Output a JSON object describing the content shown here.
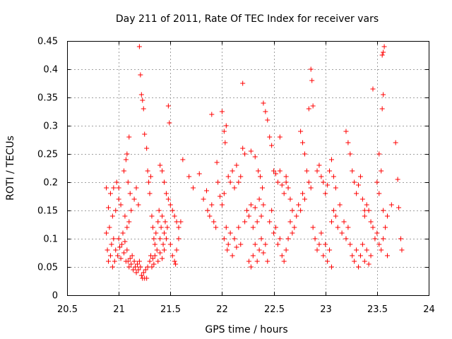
{
  "chart_data": {
    "type": "scatter",
    "title": "Day 211 of 2011, Rate Of TEC Index for receiver vars",
    "xlabel": "GPS time / hours",
    "ylabel": "ROTI / TECUs",
    "xlim": [
      20.5,
      24
    ],
    "ylim": [
      0,
      0.45
    ],
    "xticks": [
      "20.5",
      "21",
      "21.5",
      "22",
      "22.5",
      "23",
      "23.5",
      "24"
    ],
    "yticks": [
      "0",
      "0.05",
      "0.1",
      "0.15",
      "0.2",
      "0.25",
      "0.3",
      "0.35",
      "0.4",
      "0.45"
    ],
    "grid": true,
    "marker": "+",
    "color": "#ff0000",
    "series": [
      {
        "name": "vars",
        "points": [
          [
            20.88,
            0.11
          ],
          [
            20.89,
            0.08
          ],
          [
            20.9,
            0.06
          ],
          [
            20.91,
            0.12
          ],
          [
            20.92,
            0.07
          ],
          [
            20.93,
            0.09
          ],
          [
            20.94,
            0.05
          ],
          [
            20.95,
            0.1
          ],
          [
            20.96,
            0.06
          ],
          [
            20.97,
            0.08
          ],
          [
            20.88,
            0.19
          ],
          [
            20.92,
            0.18
          ],
          [
            20.95,
            0.19
          ],
          [
            20.98,
            0.2
          ],
          [
            21.0,
            0.19
          ],
          [
            20.9,
            0.155
          ],
          [
            20.94,
            0.14
          ],
          [
            20.97,
            0.15
          ],
          [
            21.0,
            0.17
          ],
          [
            21.02,
            0.16
          ],
          [
            20.99,
            0.07
          ],
          [
            21.0,
            0.1
          ],
          [
            21.01,
            0.085
          ],
          [
            21.02,
            0.065
          ],
          [
            21.03,
            0.09
          ],
          [
            21.04,
            0.11
          ],
          [
            21.05,
            0.075
          ],
          [
            21.06,
            0.095
          ],
          [
            21.07,
            0.06
          ],
          [
            21.08,
            0.08
          ],
          [
            21.05,
            0.22
          ],
          [
            21.07,
            0.24
          ],
          [
            21.08,
            0.25
          ],
          [
            21.1,
            0.28
          ],
          [
            21.09,
            0.2
          ],
          [
            21.11,
            0.18
          ],
          [
            21.06,
            0.14
          ],
          [
            21.08,
            0.12
          ],
          [
            21.1,
            0.13
          ],
          [
            21.12,
            0.15
          ],
          [
            21.09,
            0.06
          ],
          [
            21.1,
            0.05
          ],
          [
            21.11,
            0.065
          ],
          [
            21.12,
            0.055
          ],
          [
            21.13,
            0.07
          ],
          [
            21.14,
            0.045
          ],
          [
            21.15,
            0.06
          ],
          [
            21.16,
            0.05
          ],
          [
            21.17,
            0.04
          ],
          [
            21.18,
            0.055
          ],
          [
            21.19,
            0.045
          ],
          [
            21.2,
            0.06
          ],
          [
            21.21,
            0.05
          ],
          [
            21.22,
            0.035
          ],
          [
            21.23,
            0.03
          ],
          [
            21.24,
            0.04
          ],
          [
            21.25,
            0.03
          ],
          [
            21.26,
            0.045
          ],
          [
            21.27,
            0.03
          ],
          [
            21.28,
            0.05
          ],
          [
            21.2,
            0.44
          ],
          [
            21.21,
            0.39
          ],
          [
            21.22,
            0.355
          ],
          [
            21.23,
            0.345
          ],
          [
            21.24,
            0.33
          ],
          [
            21.25,
            0.285
          ],
          [
            21.27,
            0.26
          ],
          [
            21.15,
            0.17
          ],
          [
            21.17,
            0.19
          ],
          [
            21.19,
            0.16
          ],
          [
            21.28,
            0.22
          ],
          [
            21.29,
            0.2
          ],
          [
            21.3,
            0.18
          ],
          [
            21.31,
            0.21
          ],
          [
            21.32,
            0.14
          ],
          [
            21.33,
            0.12
          ],
          [
            21.34,
            0.1
          ],
          [
            21.35,
            0.09
          ],
          [
            21.36,
            0.11
          ],
          [
            21.37,
            0.08
          ],
          [
            21.3,
            0.06
          ],
          [
            21.31,
            0.07
          ],
          [
            21.32,
            0.05
          ],
          [
            21.33,
            0.065
          ],
          [
            21.34,
            0.055
          ],
          [
            21.35,
            0.07
          ],
          [
            21.38,
            0.06
          ],
          [
            21.4,
            0.075
          ],
          [
            21.42,
            0.065
          ],
          [
            21.44,
            0.08
          ],
          [
            21.38,
            0.13
          ],
          [
            21.39,
            0.15
          ],
          [
            21.4,
            0.1
          ],
          [
            21.41,
            0.12
          ],
          [
            21.42,
            0.14
          ],
          [
            21.43,
            0.09
          ],
          [
            21.44,
            0.11
          ],
          [
            21.45,
            0.13
          ],
          [
            21.46,
            0.1
          ],
          [
            21.47,
            0.12
          ],
          [
            21.4,
            0.23
          ],
          [
            21.42,
            0.22
          ],
          [
            21.44,
            0.2
          ],
          [
            21.46,
            0.18
          ],
          [
            21.48,
            0.17
          ],
          [
            21.5,
            0.16
          ],
          [
            21.52,
            0.15
          ],
          [
            21.54,
            0.14
          ],
          [
            21.56,
            0.13
          ],
          [
            21.58,
            0.12
          ],
          [
            21.48,
            0.335
          ],
          [
            21.49,
            0.305
          ],
          [
            21.5,
            0.09
          ],
          [
            21.52,
            0.07
          ],
          [
            21.54,
            0.06
          ],
          [
            21.56,
            0.08
          ],
          [
            21.58,
            0.1
          ],
          [
            21.6,
            0.13
          ],
          [
            21.62,
            0.24
          ],
          [
            21.55,
            0.055
          ],
          [
            21.68,
            0.21
          ],
          [
            21.72,
            0.19
          ],
          [
            21.78,
            0.215
          ],
          [
            21.82,
            0.17
          ],
          [
            21.86,
            0.15
          ],
          [
            21.88,
            0.14
          ],
          [
            21.85,
            0.185
          ],
          [
            21.9,
            0.16
          ],
          [
            21.92,
            0.13
          ],
          [
            21.94,
            0.12
          ],
          [
            21.9,
            0.32
          ],
          [
            21.95,
            0.235
          ],
          [
            21.96,
            0.2
          ],
          [
            21.98,
            0.175
          ],
          [
            22.0,
            0.16
          ],
          [
            22.02,
            0.18
          ],
          [
            22.0,
            0.325
          ],
          [
            22.02,
            0.29
          ],
          [
            22.04,
            0.3
          ],
          [
            22.03,
            0.27
          ],
          [
            22.02,
            0.1
          ],
          [
            22.04,
            0.12
          ],
          [
            22.05,
            0.08
          ],
          [
            22.06,
            0.09
          ],
          [
            22.08,
            0.11
          ],
          [
            22.1,
            0.07
          ],
          [
            22.12,
            0.1
          ],
          [
            22.14,
            0.085
          ],
          [
            22.16,
            0.12
          ],
          [
            22.18,
            0.09
          ],
          [
            22.06,
            0.21
          ],
          [
            22.08,
            0.2
          ],
          [
            22.1,
            0.22
          ],
          [
            22.12,
            0.19
          ],
          [
            22.14,
            0.23
          ],
          [
            22.16,
            0.2
          ],
          [
            22.18,
            0.21
          ],
          [
            22.2,
            0.26
          ],
          [
            22.2,
            0.375
          ],
          [
            22.22,
            0.25
          ],
          [
            22.22,
            0.13
          ],
          [
            22.24,
            0.15
          ],
          [
            22.26,
            0.14
          ],
          [
            22.28,
            0.16
          ],
          [
            22.3,
            0.12
          ],
          [
            22.32,
            0.155
          ],
          [
            22.34,
            0.13
          ],
          [
            22.36,
            0.17
          ],
          [
            22.38,
            0.14
          ],
          [
            22.4,
            0.16
          ],
          [
            22.26,
            0.06
          ],
          [
            22.28,
            0.05
          ],
          [
            22.3,
            0.07
          ],
          [
            22.32,
            0.09
          ],
          [
            22.34,
            0.06
          ],
          [
            22.36,
            0.08
          ],
          [
            22.38,
            0.1
          ],
          [
            22.4,
            0.075
          ],
          [
            22.42,
            0.09
          ],
          [
            22.44,
            0.06
          ],
          [
            22.28,
            0.255
          ],
          [
            22.32,
            0.245
          ],
          [
            22.35,
            0.22
          ],
          [
            22.37,
            0.21
          ],
          [
            22.39,
            0.19
          ],
          [
            22.4,
            0.34
          ],
          [
            22.42,
            0.325
          ],
          [
            22.44,
            0.31
          ],
          [
            22.46,
            0.28
          ],
          [
            22.48,
            0.265
          ],
          [
            22.46,
            0.13
          ],
          [
            22.48,
            0.15
          ],
          [
            22.5,
            0.11
          ],
          [
            22.52,
            0.12
          ],
          [
            22.54,
            0.09
          ],
          [
            22.56,
            0.1
          ],
          [
            22.58,
            0.07
          ],
          [
            22.6,
            0.06
          ],
          [
            22.62,
            0.08
          ],
          [
            22.64,
            0.1
          ],
          [
            22.5,
            0.22
          ],
          [
            22.52,
            0.215
          ],
          [
            22.54,
            0.2
          ],
          [
            22.56,
            0.22
          ],
          [
            22.58,
            0.195
          ],
          [
            22.6,
            0.18
          ],
          [
            22.62,
            0.2
          ],
          [
            22.64,
            0.19
          ],
          [
            22.66,
            0.17
          ],
          [
            22.68,
            0.15
          ],
          [
            22.56,
            0.28
          ],
          [
            22.62,
            0.21
          ],
          [
            22.66,
            0.13
          ],
          [
            22.68,
            0.11
          ],
          [
            22.7,
            0.12
          ],
          [
            22.72,
            0.14
          ],
          [
            22.74,
            0.16
          ],
          [
            22.76,
            0.15
          ],
          [
            22.78,
            0.18
          ],
          [
            22.8,
            0.17
          ],
          [
            22.76,
            0.29
          ],
          [
            22.78,
            0.27
          ],
          [
            22.8,
            0.25
          ],
          [
            22.82,
            0.22
          ],
          [
            22.84,
            0.33
          ],
          [
            22.86,
            0.4
          ],
          [
            22.87,
            0.38
          ],
          [
            22.88,
            0.335
          ],
          [
            22.84,
            0.2
          ],
          [
            22.86,
            0.19
          ],
          [
            22.88,
            0.12
          ],
          [
            22.9,
            0.1
          ],
          [
            22.92,
            0.08
          ],
          [
            22.94,
            0.09
          ],
          [
            22.96,
            0.11
          ],
          [
            22.98,
            0.07
          ],
          [
            23.0,
            0.09
          ],
          [
            23.02,
            0.06
          ],
          [
            23.04,
            0.08
          ],
          [
            23.06,
            0.05
          ],
          [
            22.92,
            0.22
          ],
          [
            22.94,
            0.23
          ],
          [
            22.96,
            0.21
          ],
          [
            22.98,
            0.2
          ],
          [
            23.0,
            0.18
          ],
          [
            23.02,
            0.195
          ],
          [
            23.04,
            0.22
          ],
          [
            23.06,
            0.24
          ],
          [
            23.08,
            0.21
          ],
          [
            23.1,
            0.19
          ],
          [
            23.06,
            0.13
          ],
          [
            23.08,
            0.15
          ],
          [
            23.1,
            0.14
          ],
          [
            23.12,
            0.12
          ],
          [
            23.14,
            0.16
          ],
          [
            23.16,
            0.11
          ],
          [
            23.18,
            0.13
          ],
          [
            23.2,
            0.1
          ],
          [
            23.22,
            0.12
          ],
          [
            23.24,
            0.09
          ],
          [
            23.2,
            0.29
          ],
          [
            23.22,
            0.27
          ],
          [
            23.24,
            0.25
          ],
          [
            23.26,
            0.22
          ],
          [
            23.28,
            0.2
          ],
          [
            23.3,
            0.18
          ],
          [
            23.32,
            0.195
          ],
          [
            23.34,
            0.21
          ],
          [
            23.36,
            0.17
          ],
          [
            23.38,
            0.15
          ],
          [
            23.26,
            0.07
          ],
          [
            23.28,
            0.06
          ],
          [
            23.3,
            0.08
          ],
          [
            23.32,
            0.05
          ],
          [
            23.34,
            0.07
          ],
          [
            23.36,
            0.09
          ],
          [
            23.38,
            0.06
          ],
          [
            23.4,
            0.08
          ],
          [
            23.42,
            0.055
          ],
          [
            23.44,
            0.07
          ],
          [
            23.38,
            0.14
          ],
          [
            23.4,
            0.16
          ],
          [
            23.42,
            0.15
          ],
          [
            23.44,
            0.13
          ],
          [
            23.46,
            0.12
          ],
          [
            23.48,
            0.1
          ],
          [
            23.5,
            0.11
          ],
          [
            23.52,
            0.09
          ],
          [
            23.54,
            0.08
          ],
          [
            23.56,
            0.1
          ],
          [
            23.46,
            0.365
          ],
          [
            23.52,
            0.25
          ],
          [
            23.54,
            0.22
          ],
          [
            23.55,
            0.33
          ],
          [
            23.56,
            0.355
          ],
          [
            23.57,
            0.44
          ],
          [
            23.56,
            0.43
          ],
          [
            23.55,
            0.425
          ],
          [
            23.58,
            0.12
          ],
          [
            23.6,
            0.07
          ],
          [
            23.5,
            0.2
          ],
          [
            23.52,
            0.18
          ],
          [
            23.56,
            0.15
          ],
          [
            23.6,
            0.14
          ],
          [
            23.64,
            0.16
          ],
          [
            23.68,
            0.27
          ],
          [
            23.7,
            0.205
          ],
          [
            23.71,
            0.155
          ],
          [
            23.73,
            0.1
          ],
          [
            23.74,
            0.08
          ]
        ]
      }
    ]
  }
}
